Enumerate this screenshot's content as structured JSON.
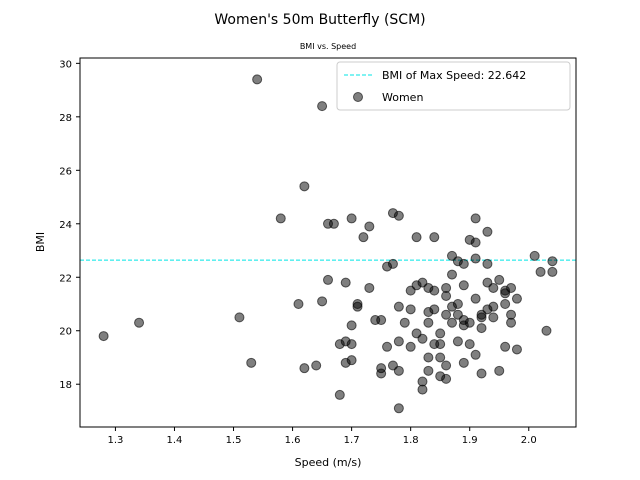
{
  "chart_data": {
    "type": "scatter",
    "title": "Women's 50m Butterfly (SCM)",
    "subtitle": "BMI vs. Speed",
    "xlabel": "Speed (m/s)",
    "ylabel": "BMI",
    "xlim": [
      1.24,
      2.08
    ],
    "ylim": [
      16.4,
      30.2
    ],
    "xticks": [
      1.3,
      1.4,
      1.5,
      1.6,
      1.7,
      1.8,
      1.9,
      2.0
    ],
    "yticks": [
      18,
      20,
      22,
      24,
      26,
      28,
      30
    ],
    "grid": false,
    "legend_position": "top-right",
    "reference_line": {
      "label": "BMI of Max Speed: 22.642",
      "y": 22.642,
      "color": "#00e5e5",
      "style": "dashed"
    },
    "series": [
      {
        "name": "Women",
        "color": "#000000",
        "opacity": 0.5,
        "points": [
          [
            1.28,
            19.8
          ],
          [
            1.34,
            20.3
          ],
          [
            1.51,
            20.5
          ],
          [
            1.53,
            18.8
          ],
          [
            1.54,
            29.4
          ],
          [
            1.58,
            24.2
          ],
          [
            1.61,
            21.0
          ],
          [
            1.62,
            25.4
          ],
          [
            1.62,
            18.6
          ],
          [
            1.64,
            18.7
          ],
          [
            1.65,
            28.4
          ],
          [
            1.65,
            21.1
          ],
          [
            1.66,
            24.0
          ],
          [
            1.66,
            21.9
          ],
          [
            1.67,
            24.0
          ],
          [
            1.68,
            17.6
          ],
          [
            1.68,
            19.5
          ],
          [
            1.69,
            21.8
          ],
          [
            1.69,
            19.6
          ],
          [
            1.69,
            18.8
          ],
          [
            1.7,
            20.2
          ],
          [
            1.7,
            18.9
          ],
          [
            1.7,
            19.5
          ],
          [
            1.7,
            24.2
          ],
          [
            1.71,
            20.9
          ],
          [
            1.71,
            21.0
          ],
          [
            1.72,
            23.5
          ],
          [
            1.73,
            23.9
          ],
          [
            1.73,
            21.6
          ],
          [
            1.74,
            20.4
          ],
          [
            1.75,
            20.4
          ],
          [
            1.75,
            18.6
          ],
          [
            1.75,
            18.4
          ],
          [
            1.76,
            19.4
          ],
          [
            1.76,
            22.4
          ],
          [
            1.77,
            24.4
          ],
          [
            1.77,
            22.5
          ],
          [
            1.77,
            18.7
          ],
          [
            1.78,
            19.6
          ],
          [
            1.78,
            18.5
          ],
          [
            1.78,
            17.1
          ],
          [
            1.78,
            24.3
          ],
          [
            1.78,
            20.9
          ],
          [
            1.79,
            20.3
          ],
          [
            1.8,
            21.5
          ],
          [
            1.8,
            20.8
          ],
          [
            1.8,
            19.4
          ],
          [
            1.81,
            21.7
          ],
          [
            1.81,
            23.5
          ],
          [
            1.81,
            19.9
          ],
          [
            1.82,
            17.8
          ],
          [
            1.82,
            18.1
          ],
          [
            1.82,
            19.7
          ],
          [
            1.82,
            21.8
          ],
          [
            1.83,
            18.5
          ],
          [
            1.83,
            21.6
          ],
          [
            1.83,
            20.7
          ],
          [
            1.83,
            20.3
          ],
          [
            1.83,
            19.0
          ],
          [
            1.84,
            19.5
          ],
          [
            1.84,
            23.5
          ],
          [
            1.84,
            21.5
          ],
          [
            1.84,
            20.8
          ],
          [
            1.85,
            19.0
          ],
          [
            1.85,
            19.5
          ],
          [
            1.85,
            18.3
          ],
          [
            1.85,
            19.9
          ],
          [
            1.86,
            21.3
          ],
          [
            1.86,
            21.6
          ],
          [
            1.86,
            18.7
          ],
          [
            1.86,
            18.2
          ],
          [
            1.86,
            20.6
          ],
          [
            1.87,
            20.3
          ],
          [
            1.87,
            22.8
          ],
          [
            1.87,
            22.1
          ],
          [
            1.88,
            21.0
          ],
          [
            1.88,
            20.6
          ],
          [
            1.88,
            19.6
          ],
          [
            1.88,
            22.6
          ],
          [
            1.89,
            21.7
          ],
          [
            1.89,
            20.2
          ],
          [
            1.89,
            20.4
          ],
          [
            1.89,
            18.8
          ],
          [
            1.89,
            22.5
          ],
          [
            1.9,
            23.4
          ],
          [
            1.9,
            20.3
          ],
          [
            1.9,
            19.5
          ],
          [
            1.91,
            22.7
          ],
          [
            1.91,
            23.3
          ],
          [
            1.91,
            21.2
          ],
          [
            1.91,
            24.2
          ],
          [
            1.92,
            20.1
          ],
          [
            1.92,
            20.6
          ],
          [
            1.92,
            20.5
          ],
          [
            1.93,
            20.8
          ],
          [
            1.93,
            21.8
          ],
          [
            1.93,
            23.7
          ],
          [
            1.93,
            22.5
          ],
          [
            1.94,
            21.6
          ],
          [
            1.94,
            20.9
          ],
          [
            1.95,
            21.9
          ],
          [
            1.95,
            18.5
          ],
          [
            1.96,
            21.4
          ],
          [
            1.96,
            21.5
          ],
          [
            1.96,
            21.0
          ],
          [
            1.96,
            19.4
          ],
          [
            1.97,
            21.6
          ],
          [
            1.97,
            20.3
          ],
          [
            1.98,
            19.3
          ],
          [
            1.98,
            21.2
          ],
          [
            2.01,
            22.8
          ],
          [
            2.02,
            22.2
          ],
          [
            2.03,
            20.0
          ],
          [
            2.04,
            22.2
          ],
          [
            2.04,
            22.6
          ],
          [
            1.92,
            18.4
          ],
          [
            1.91,
            19.1
          ],
          [
            1.87,
            20.9
          ],
          [
            1.94,
            20.5
          ],
          [
            1.97,
            20.6
          ]
        ]
      }
    ]
  }
}
